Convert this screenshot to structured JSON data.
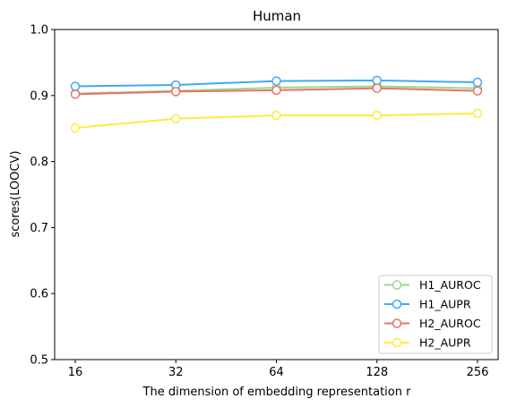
{
  "chart_data": {
    "type": "line",
    "title": "Human",
    "xlabel": "The dimension of embedding representation r",
    "ylabel": "scores(LOOCV)",
    "categories": [
      "16",
      "32",
      "64",
      "128",
      "256"
    ],
    "ylim": [
      0.5,
      1.0
    ],
    "yticks": [
      "0.5",
      "0.6",
      "0.7",
      "0.8",
      "0.9",
      "1.0"
    ],
    "grid": false,
    "legend_position": "lower-right",
    "series": [
      {
        "name": "H1_AUROC",
        "color": "#98d98e",
        "values": [
          0.903,
          0.907,
          0.912,
          0.914,
          0.911
        ]
      },
      {
        "name": "H1_AUPR",
        "color": "#3fa9f5",
        "values": [
          0.914,
          0.916,
          0.922,
          0.923,
          0.92
        ]
      },
      {
        "name": "H2_AUROC",
        "color": "#ea7268",
        "values": [
          0.902,
          0.906,
          0.908,
          0.911,
          0.907
        ]
      },
      {
        "name": "H2_AUPR",
        "color": "#ffeb3b",
        "values": [
          0.851,
          0.865,
          0.87,
          0.87,
          0.873
        ]
      }
    ]
  }
}
